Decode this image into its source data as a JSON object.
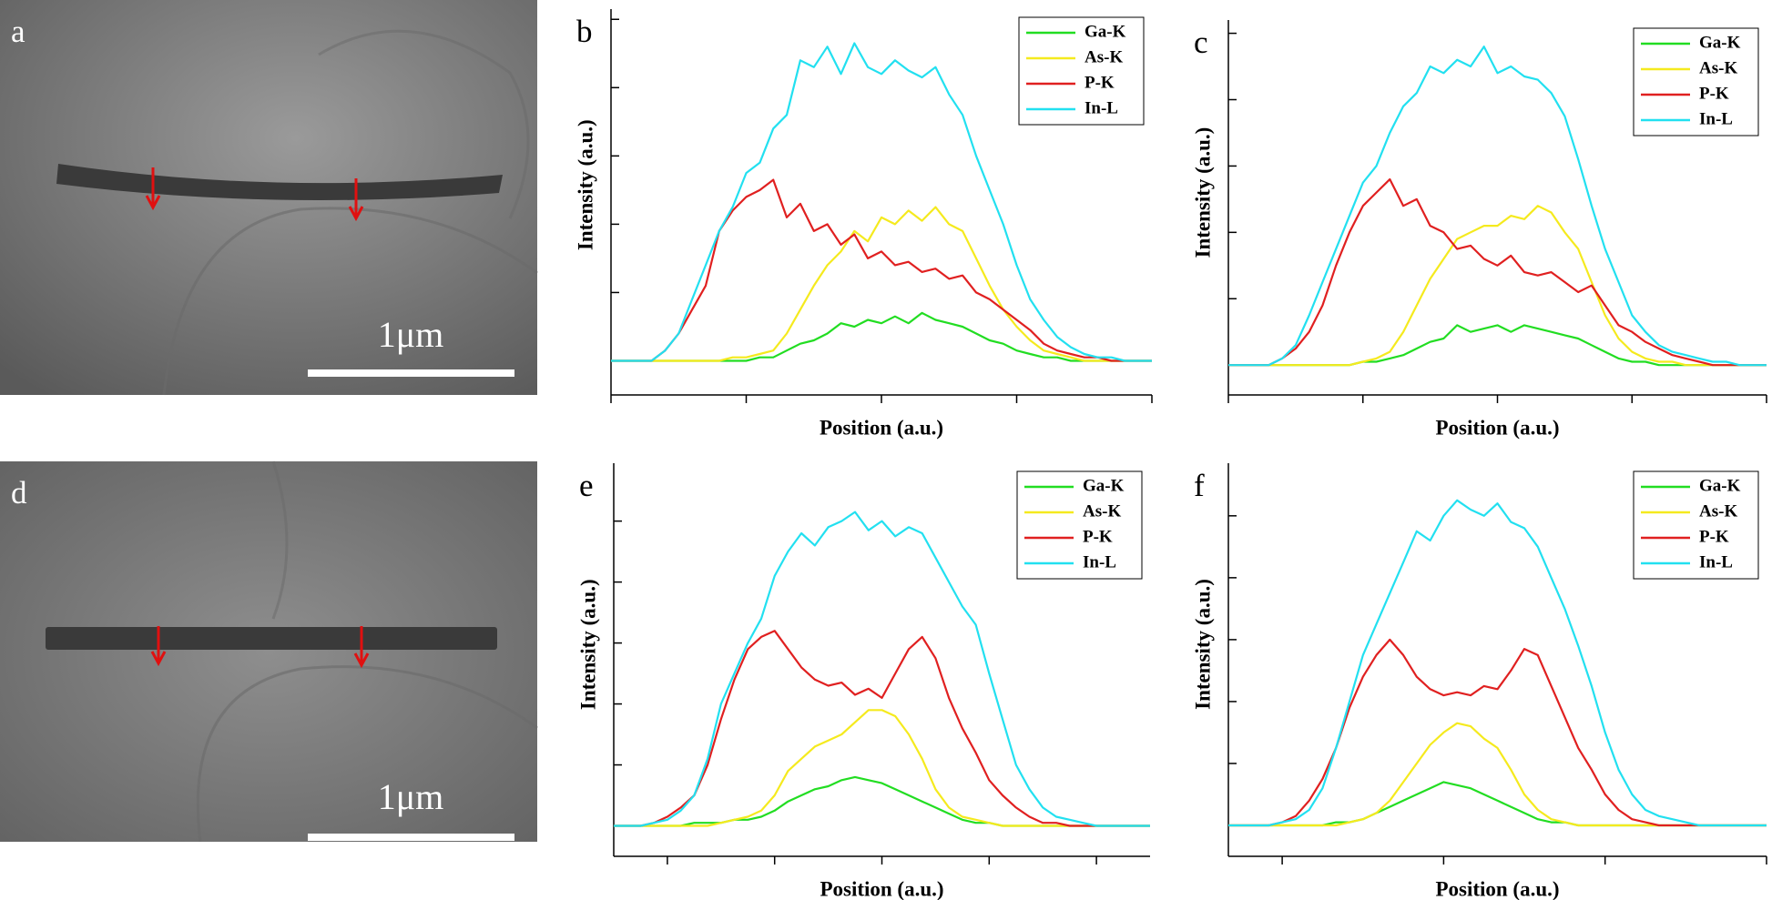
{
  "images": [
    {
      "label": "a",
      "scale_bar": "1μm"
    },
    {
      "label": "d",
      "scale_bar": "1μm"
    }
  ],
  "chart_data": [
    {
      "type": "line",
      "label": "b",
      "xlabel": "Position (a.u.)",
      "ylabel": "Intensity (a.u.)",
      "x": [
        0,
        2.5,
        5,
        7.5,
        10,
        12.5,
        15,
        17.5,
        20,
        22.5,
        25,
        27.5,
        30,
        32.5,
        35,
        37.5,
        40,
        42.5,
        45,
        47.5,
        50,
        52.5,
        55,
        57.5,
        60,
        62.5,
        65,
        67.5,
        70,
        72.5,
        75,
        77.5,
        80,
        82.5,
        85,
        87.5,
        90,
        92.5,
        95,
        97.5,
        100
      ],
      "xlim": [
        0,
        100
      ],
      "xticks": [
        0,
        25,
        50,
        75,
        100
      ],
      "ylim": [
        -10,
        103
      ],
      "yticks": [
        0,
        20,
        40,
        60,
        80,
        100
      ],
      "legend": "upper right",
      "series": [
        {
          "name": "Ga-K",
          "color": "#22dd22",
          "values": [
            0,
            0,
            0,
            0,
            0,
            0,
            0,
            0,
            0,
            0,
            0,
            1,
            1,
            3,
            5,
            6,
            8,
            11,
            10,
            12,
            11,
            13,
            11,
            14,
            12,
            11,
            10,
            8,
            6,
            5,
            3,
            2,
            1,
            1,
            0,
            0,
            0,
            0,
            0,
            0,
            0
          ]
        },
        {
          "name": "As-K",
          "color": "#f5ea1e",
          "values": [
            0,
            0,
            0,
            0,
            0,
            0,
            0,
            0,
            0,
            1,
            1,
            2,
            3,
            8,
            15,
            22,
            28,
            32,
            38,
            35,
            42,
            40,
            44,
            41,
            45,
            40,
            38,
            30,
            22,
            15,
            10,
            6,
            3,
            2,
            1,
            0,
            0,
            0,
            0,
            0,
            0
          ]
        },
        {
          "name": "P-K",
          "color": "#e02020",
          "values": [
            0,
            0,
            0,
            0,
            3,
            8,
            15,
            22,
            38,
            44,
            48,
            50,
            53,
            42,
            46,
            38,
            40,
            34,
            37,
            30,
            32,
            28,
            29,
            26,
            27,
            24,
            25,
            20,
            18,
            15,
            12,
            9,
            5,
            3,
            2,
            1,
            1,
            0,
            0,
            0,
            0
          ]
        },
        {
          "name": "In-L",
          "color": "#22e0f0",
          "values": [
            0,
            0,
            0,
            0,
            3,
            8,
            18,
            28,
            38,
            45,
            55,
            58,
            68,
            72,
            88,
            86,
            92,
            84,
            93,
            86,
            84,
            88,
            85,
            83,
            86,
            78,
            72,
            60,
            50,
            40,
            28,
            18,
            12,
            7,
            4,
            2,
            1,
            1,
            0,
            0,
            0
          ]
        }
      ]
    },
    {
      "type": "line",
      "label": "c",
      "xlabel": "Position (a.u.)",
      "ylabel": "Intensity (a.u.)",
      "x": [
        0,
        2.5,
        5,
        7.5,
        10,
        12.5,
        15,
        17.5,
        20,
        22.5,
        25,
        27.5,
        30,
        32.5,
        35,
        37.5,
        40,
        42.5,
        45,
        47.5,
        50,
        52.5,
        55,
        57.5,
        60,
        62.5,
        65,
        67.5,
        70,
        72.5,
        75,
        77.5,
        80,
        82.5,
        85,
        87.5,
        90,
        92.5,
        95,
        97.5,
        100
      ],
      "xlim": [
        0,
        100
      ],
      "xticks": [
        0,
        25,
        50,
        75,
        100
      ],
      "ylim": [
        -9,
        104
      ],
      "yticks": [
        0,
        20,
        40,
        60,
        80,
        100
      ],
      "legend": "upper right",
      "series": [
        {
          "name": "Ga-K",
          "color": "#22dd22",
          "values": [
            0,
            0,
            0,
            0,
            0,
            0,
            0,
            0,
            0,
            0,
            1,
            1,
            2,
            3,
            5,
            7,
            8,
            12,
            10,
            11,
            12,
            10,
            12,
            11,
            10,
            9,
            8,
            6,
            4,
            2,
            1,
            1,
            0,
            0,
            0,
            0,
            0,
            0,
            0,
            0,
            0
          ]
        },
        {
          "name": "As-K",
          "color": "#f5ea1e",
          "values": [
            0,
            0,
            0,
            0,
            0,
            0,
            0,
            0,
            0,
            0,
            1,
            2,
            4,
            10,
            18,
            26,
            32,
            38,
            40,
            42,
            42,
            45,
            44,
            48,
            46,
            40,
            35,
            25,
            15,
            8,
            4,
            2,
            1,
            1,
            0,
            0,
            0,
            0,
            0,
            0,
            0
          ]
        },
        {
          "name": "P-K",
          "color": "#e02020",
          "values": [
            0,
            0,
            0,
            0,
            2,
            5,
            10,
            18,
            30,
            40,
            48,
            52,
            56,
            48,
            50,
            42,
            40,
            35,
            36,
            32,
            30,
            33,
            28,
            27,
            28,
            25,
            22,
            24,
            18,
            12,
            10,
            7,
            5,
            3,
            2,
            1,
            0,
            0,
            0,
            0,
            0
          ]
        },
        {
          "name": "In-L",
          "color": "#22e0f0",
          "values": [
            0,
            0,
            0,
            0,
            2,
            6,
            15,
            25,
            35,
            45,
            55,
            60,
            70,
            78,
            82,
            90,
            88,
            92,
            90,
            96,
            88,
            90,
            87,
            86,
            82,
            75,
            62,
            48,
            35,
            25,
            15,
            10,
            6,
            4,
            3,
            2,
            1,
            1,
            0,
            0,
            0
          ]
        }
      ]
    },
    {
      "type": "line",
      "label": "e",
      "xlabel": "Position (a.u.)",
      "ylabel": "Intensity (a.u.)",
      "x": [
        0,
        2.5,
        5,
        7.5,
        10,
        12.5,
        15,
        17.5,
        20,
        22.5,
        25,
        27.5,
        30,
        32.5,
        35,
        37.5,
        40,
        42.5,
        45,
        47.5,
        50,
        52.5,
        55,
        57.5,
        60,
        62.5,
        65,
        67.5,
        70,
        72.5,
        75,
        77.5,
        80,
        82.5,
        85,
        87.5,
        90,
        92.5,
        95,
        97.5,
        100
      ],
      "xlim": [
        0,
        100
      ],
      "xticks": [
        10,
        30,
        50,
        70,
        90
      ],
      "ylim": [
        -10,
        119
      ],
      "yticks": [
        0,
        20,
        40,
        60,
        80,
        100
      ],
      "legend": "upper right",
      "series": [
        {
          "name": "Ga-K",
          "color": "#22dd22",
          "values": [
            0,
            0,
            0,
            0,
            0,
            0,
            1,
            1,
            1,
            2,
            2,
            3,
            5,
            8,
            10,
            12,
            13,
            15,
            16,
            15,
            14,
            12,
            10,
            8,
            6,
            4,
            2,
            1,
            1,
            0,
            0,
            0,
            0,
            0,
            0,
            0,
            0,
            0,
            0,
            0,
            0
          ]
        },
        {
          "name": "As-K",
          "color": "#f5ea1e",
          "values": [
            0,
            0,
            0,
            0,
            0,
            0,
            0,
            0,
            1,
            2,
            3,
            5,
            10,
            18,
            22,
            26,
            28,
            30,
            34,
            38,
            38,
            36,
            30,
            22,
            12,
            6,
            3,
            2,
            1,
            0,
            0,
            0,
            0,
            0,
            0,
            0,
            0,
            0,
            0,
            0,
            0
          ]
        },
        {
          "name": "P-K",
          "color": "#e02020",
          "values": [
            0,
            0,
            0,
            1,
            3,
            6,
            10,
            20,
            35,
            48,
            58,
            62,
            64,
            58,
            52,
            48,
            46,
            47,
            43,
            45,
            42,
            50,
            58,
            62,
            55,
            42,
            32,
            24,
            15,
            10,
            6,
            3,
            1,
            1,
            0,
            0,
            0,
            0,
            0,
            0,
            0
          ]
        },
        {
          "name": "In-L",
          "color": "#22e0f0",
          "values": [
            0,
            0,
            0,
            1,
            2,
            5,
            10,
            22,
            40,
            50,
            60,
            68,
            82,
            90,
            96,
            92,
            98,
            100,
            103,
            97,
            100,
            95,
            98,
            96,
            88,
            80,
            72,
            66,
            50,
            35,
            20,
            12,
            6,
            3,
            2,
            1,
            0,
            0,
            0,
            0,
            0
          ]
        }
      ]
    },
    {
      "type": "line",
      "label": "f",
      "xlabel": "Position (a.u.)",
      "ylabel": "Intensity (a.u.)",
      "x": [
        0,
        2.5,
        5,
        7.5,
        10,
        12.5,
        15,
        17.5,
        20,
        22.5,
        25,
        27.5,
        30,
        32.5,
        35,
        37.5,
        40,
        42.5,
        45,
        47.5,
        50,
        52.5,
        55,
        57.5,
        60,
        62.5,
        65,
        67.5,
        70,
        72.5,
        75,
        77.5,
        80,
        82.5,
        85,
        87.5,
        90,
        92.5,
        95,
        97.5,
        100
      ],
      "xlim": [
        0,
        100
      ],
      "xticks": [
        10,
        40,
        70,
        100
      ],
      "ylim": [
        -10,
        117
      ],
      "yticks": [
        0,
        20,
        40,
        60,
        80,
        100
      ],
      "legend": "upper right",
      "series": [
        {
          "name": "Ga-K",
          "color": "#22dd22",
          "values": [
            0,
            0,
            0,
            0,
            0,
            0,
            0,
            0,
            1,
            1,
            2,
            4,
            6,
            8,
            10,
            12,
            14,
            13,
            12,
            10,
            8,
            6,
            4,
            2,
            1,
            1,
            0,
            0,
            0,
            0,
            0,
            0,
            0,
            0,
            0,
            0,
            0,
            0,
            0,
            0,
            0
          ]
        },
        {
          "name": "As-K",
          "color": "#f5ea1e",
          "values": [
            0,
            0,
            0,
            0,
            0,
            0,
            0,
            0,
            0,
            1,
            2,
            4,
            8,
            14,
            20,
            26,
            30,
            33,
            32,
            28,
            25,
            18,
            10,
            5,
            2,
            1,
            0,
            0,
            0,
            0,
            0,
            0,
            0,
            0,
            0,
            0,
            0,
            0,
            0,
            0,
            0
          ]
        },
        {
          "name": "P-K",
          "color": "#e02020",
          "values": [
            0,
            0,
            0,
            0,
            1,
            3,
            8,
            15,
            25,
            38,
            48,
            55,
            60,
            55,
            48,
            44,
            42,
            43,
            42,
            45,
            44,
            50,
            57,
            55,
            45,
            35,
            25,
            18,
            10,
            5,
            2,
            1,
            0,
            0,
            0,
            0,
            0,
            0,
            0,
            0,
            0
          ]
        },
        {
          "name": "In-L",
          "color": "#22e0f0",
          "values": [
            0,
            0,
            0,
            0,
            1,
            2,
            5,
            12,
            25,
            40,
            55,
            65,
            75,
            85,
            95,
            92,
            100,
            105,
            102,
            100,
            104,
            98,
            96,
            90,
            80,
            70,
            58,
            45,
            30,
            18,
            10,
            5,
            3,
            2,
            1,
            0,
            0,
            0,
            0,
            0,
            0
          ]
        }
      ]
    }
  ]
}
